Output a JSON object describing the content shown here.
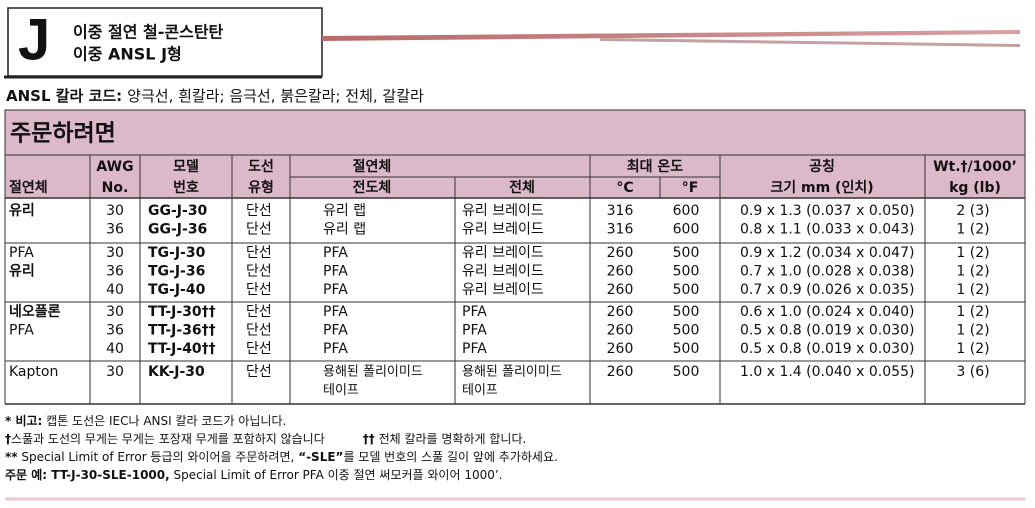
{
  "header": {
    "letter": "J",
    "line1": "이중 절연 철-콘스탄탄",
    "line2": "이중 ANSL J형"
  },
  "color_code": {
    "label": "ANSL 칼라 코드:",
    "text": "양극선, 흰칼라; 음극선, 붉은칼라; 전체, 갈칼라"
  },
  "table": {
    "title": "주문하려면",
    "headers": [
      "절연체",
      "AWG",
      "No.",
      "모델",
      "번호",
      "도선",
      "유형",
      "절연체",
      "전도체",
      "전체",
      "최대 온도",
      "°C",
      "°F",
      "공칭",
      "크기 mm (인치)",
      "Wt.†/1000’",
      "kg (lb)"
    ],
    "groups": [
      {
        "insulation": [
          {
            "text": "유리",
            "bold": true
          }
        ],
        "rows": [
          [
            30,
            "GG-J-30",
            "단선",
            "유리 랩",
            "유리 브레이드",
            316,
            600,
            "0.9 x 1.3 (0.037 x 0.050)",
            "2 (3)"
          ],
          [
            36,
            "GG-J-36",
            "단선",
            "유리 랩",
            "유리 브레이드",
            316,
            600,
            "0.8 x 1.1 (0.033 x 0.043)",
            "1 (2)"
          ]
        ]
      },
      {
        "insulation": [
          {
            "text": "PFA",
            "bold": false
          },
          {
            "text": "유리",
            "bold": true
          }
        ],
        "rows": [
          [
            30,
            "TG-J-30",
            "단선",
            "PFA",
            "유리 브레이드",
            260,
            500,
            "0.9 x 1.2 (0.034 x 0.047)",
            "1 (2)"
          ],
          [
            36,
            "TG-J-36",
            "단선",
            "PFA",
            "유리 브레이드",
            260,
            500,
            "0.7 x 1.0 (0.028 x 0.038)",
            "1 (2)"
          ],
          [
            40,
            "TG-J-40",
            "단선",
            "PFA",
            "유리 브레이드",
            260,
            500,
            "0.7 x 0.9 (0.026 x 0.035)",
            "1 (2)"
          ]
        ]
      },
      {
        "insulation": [
          {
            "text": "네오플론",
            "bold": true
          },
          {
            "text": "PFA",
            "bold": false
          }
        ],
        "rows": [
          [
            30,
            "TT-J-30††",
            "단선",
            "PFA",
            "PFA",
            260,
            500,
            "0.6 x 1.0 (0.024 x 0.040)",
            "1 (2)"
          ],
          [
            36,
            "TT-J-36††",
            "단선",
            "PFA",
            "PFA",
            260,
            500,
            "0.5 x 0.8 (0.019 x 0.030)",
            "1 (2)"
          ],
          [
            40,
            "TT-J-40††",
            "단선",
            "PFA",
            "PFA",
            260,
            500,
            "0.5 x 0.8 (0.019 x 0.030)",
            "1 (2)"
          ]
        ]
      },
      {
        "insulation": [
          {
            "text": "Kapton",
            "bold": false
          }
        ],
        "rows": [
          [
            30,
            "KK-J-30",
            "단선",
            [
              "용해된 폴리이미드",
              "테이프"
            ],
            [
              "용해된 폴리이미드",
              "테이프"
            ],
            260,
            500,
            "1.0 x 1.4 (0.040 x 0.055)",
            "3 (6)"
          ]
        ]
      }
    ]
  },
  "footnotes": [
    [
      {
        "text": "* 비고:",
        "bold": true
      },
      {
        "text": " 캡톤 도선은 IEC나 ANSI 칼라 코드가 아닙니다.",
        "bold": false
      }
    ],
    [
      {
        "text": "†",
        "bold": true
      },
      {
        "text": "스풀과 도선의 무게는 무게는 포장재 무게를 포함하지 않습니다",
        "bold": false
      },
      {
        "text": "††",
        "bold": true
      },
      {
        "text": " 전체 칼라를 명확하게 합니다.",
        "bold": false
      }
    ],
    [
      {
        "text": "**",
        "bold": true
      },
      {
        "text": " Special Limit of Error 등급의 와이어을 주문하려면, ",
        "bold": false
      },
      {
        "text": "“-SLE”",
        "bold": true
      },
      {
        "text": "를 모델 번호의 스풀 길이 앞에 추가하세요.",
        "bold": false
      }
    ],
    [
      {
        "text": "주문 예: TT-J-30-SLE-1000,",
        "bold": true
      },
      {
        "text": " Special Limit of Error PFA 이중 절연 써모커플 와이어 1000’.",
        "bold": false
      }
    ]
  ]
}
